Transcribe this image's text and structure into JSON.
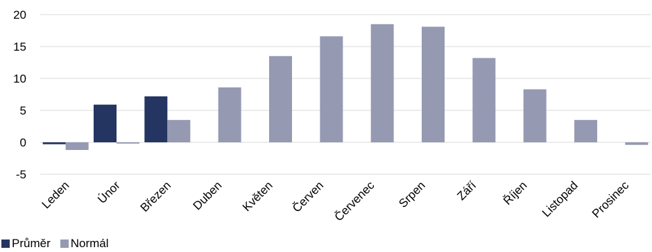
{
  "chart_data": {
    "type": "bar",
    "categories": [
      "Leden",
      "Únor",
      "Březen",
      "Duben",
      "Květen",
      "Červen",
      "Červenec",
      "Srpen",
      "Září",
      "Říjen",
      "Listopad",
      "Prosinec"
    ],
    "series": [
      {
        "name": "Průměr",
        "color": "#253561",
        "values": [
          -0.3,
          5.9,
          7.2,
          null,
          null,
          null,
          null,
          null,
          null,
          null,
          null,
          null
        ]
      },
      {
        "name": "Normál",
        "color": "#9599b2",
        "values": [
          -1.2,
          -0.2,
          3.5,
          8.6,
          13.5,
          16.6,
          18.5,
          18.1,
          13.2,
          8.3,
          3.5,
          -0.4
        ]
      }
    ],
    "yticks": [
      -5,
      0,
      5,
      10,
      15,
      20
    ],
    "ylim": [
      -5,
      20
    ],
    "grid": true,
    "legend": "bottom-left",
    "gridColor": "#d9d9d9"
  }
}
